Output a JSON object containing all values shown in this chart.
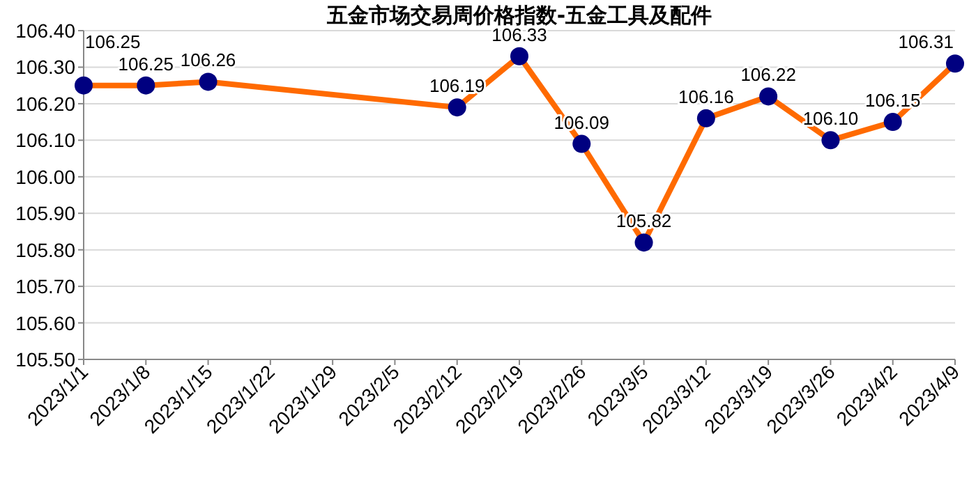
{
  "chart_data": {
    "type": "line",
    "title": "五金市场交易周价格指数-五金工具及配件",
    "x": [
      "2023-01-01",
      "2023-01-08",
      "2023-01-15",
      "2023-02-12",
      "2023-02-19",
      "2023-02-26",
      "2023-03-05",
      "2023-03-12",
      "2023-03-19",
      "2023-03-26",
      "2023-04-02",
      "2023-04-09"
    ],
    "series": [
      {
        "color": "#ff6a00",
        "colors": [
          "#000080",
          "#000080",
          "#000080",
          "#000080",
          "#000080",
          "#000080",
          "#000080",
          "#000080",
          "#000080",
          "#000080",
          "#000080",
          "#000080"
        ],
        "values": [
          106.25,
          106.25,
          106.26,
          106.19,
          106.33,
          106.09,
          105.82,
          106.16,
          106.22,
          106.1,
          106.15,
          106.31
        ],
        "value_labels": [
          "106.25",
          "106.25",
          "106.26",
          "106.19",
          "106.33",
          "106.09",
          "105.82",
          "106.16",
          "106.22",
          "106.10",
          "106.15",
          "106.31"
        ]
      }
    ],
    "xlim": [
      "2023-01-01",
      "2023-04-09"
    ],
    "xticks": [
      {
        "value": "2023-01-01",
        "label": "2023/1/1"
      },
      {
        "value": "2023-01-08",
        "label": "2023/1/8"
      },
      {
        "value": "2023-01-15",
        "label": "2023/1/15"
      },
      {
        "value": "2023-01-22",
        "label": "2023/1/22"
      },
      {
        "value": "2023-01-29",
        "label": "2023/1/29"
      },
      {
        "value": "2023-02-05",
        "label": "2023/2/5"
      },
      {
        "value": "2023-02-12",
        "label": "2023/2/12"
      },
      {
        "value": "2023-02-19",
        "label": "2023/2/19"
      },
      {
        "value": "2023-02-26",
        "label": "2023/2/26"
      },
      {
        "value": "2023-03-05",
        "label": "2023/3/5"
      },
      {
        "value": "2023-03-12",
        "label": "2023/3/12"
      },
      {
        "value": "2023-03-19",
        "label": "2023/3/19"
      },
      {
        "value": "2023-03-26",
        "label": "2023/3/26"
      },
      {
        "value": "2023-04-02",
        "label": "2023/4/2"
      },
      {
        "value": "2023-04-09",
        "label": "2023/4/9"
      }
    ],
    "ylim": [
      105.5,
      106.4
    ],
    "yticks": [
      {
        "value": 105.5,
        "label": "105.50"
      },
      {
        "value": 105.6,
        "label": "105.60"
      },
      {
        "value": 105.7,
        "label": "105.70"
      },
      {
        "value": 105.8,
        "label": "105.80"
      },
      {
        "value": 105.9,
        "label": "105.90"
      },
      {
        "value": 106.0,
        "label": "106.00"
      },
      {
        "value": 106.1,
        "label": "106.10"
      },
      {
        "value": 106.2,
        "label": "106.20"
      },
      {
        "value": 106.3,
        "label": "106.30"
      },
      {
        "value": 106.4,
        "label": "106.40"
      }
    ],
    "grid": "y",
    "marker": "circle",
    "line_style": "solid"
  }
}
